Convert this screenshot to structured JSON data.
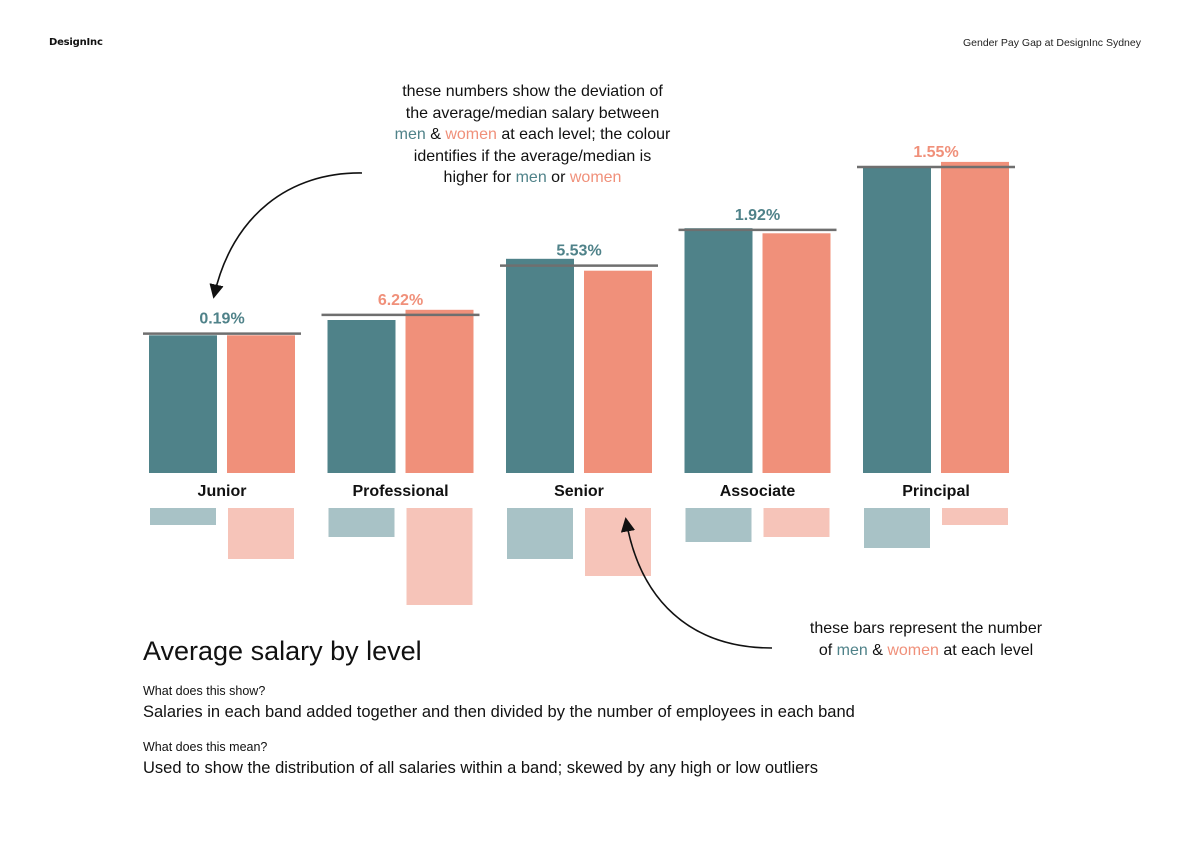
{
  "header": {
    "brand": "DesignInc",
    "document_title": "Gender Pay Gap at DesignInc Sydney"
  },
  "colors": {
    "men": "#4f8289",
    "women": "#f0907a",
    "men_light": "#a8c2c6",
    "women_light": "#f6c4b9",
    "average_line": "#6f6f6f"
  },
  "annotations": {
    "top": {
      "line1": "these numbers show the deviation of",
      "line2": "the average/median salary between",
      "men": "men",
      "amp": "&",
      "women": "women",
      "line3_rest": "at each level; the colour",
      "line4": "identifies if the average/median is",
      "line5_pre": "higher for",
      "or": "or"
    },
    "bottom": {
      "line1": "these bars represent the number",
      "pre": "of",
      "men": "men",
      "amp": "&",
      "women": "women",
      "post": "at each level"
    }
  },
  "chart_data": {
    "type": "bar",
    "categories": [
      "Junior",
      "Professional",
      "Senior",
      "Associate",
      "Principal"
    ],
    "series": [
      {
        "key": "men",
        "values": [
          0.405,
          0.45,
          0.63,
          0.72,
          0.9
        ]
      },
      {
        "key": "women",
        "values": [
          0.405,
          0.48,
          0.595,
          0.705,
          0.915
        ]
      }
    ],
    "deviations": [
      {
        "label": "0.19%",
        "higher": "men"
      },
      {
        "label": "6.22%",
        "higher": "women"
      },
      {
        "label": "5.53%",
        "higher": "men"
      },
      {
        "label": "1.92%",
        "higher": "men"
      },
      {
        "label": "1.55%",
        "higher": "women"
      }
    ],
    "average_line_values": [
      0.41,
      0.465,
      0.61,
      0.715,
      0.9
    ],
    "headcount_series": [
      {
        "key": "men",
        "values": [
          0.17,
          0.29,
          0.51,
          0.34,
          0.4
        ]
      },
      {
        "key": "women",
        "values": [
          0.51,
          0.97,
          0.68,
          0.29,
          0.17
        ]
      }
    ],
    "xlabel": "",
    "ylabel": ""
  },
  "section": {
    "title": "Average salary by level",
    "q1": "What does this show?",
    "a1": "Salaries in each band added together and then divided by the number of employees in each band",
    "q2": "What does this mean?",
    "a2": "Used to show the distribution of all salaries within a band; skewed by any high or low outliers"
  }
}
